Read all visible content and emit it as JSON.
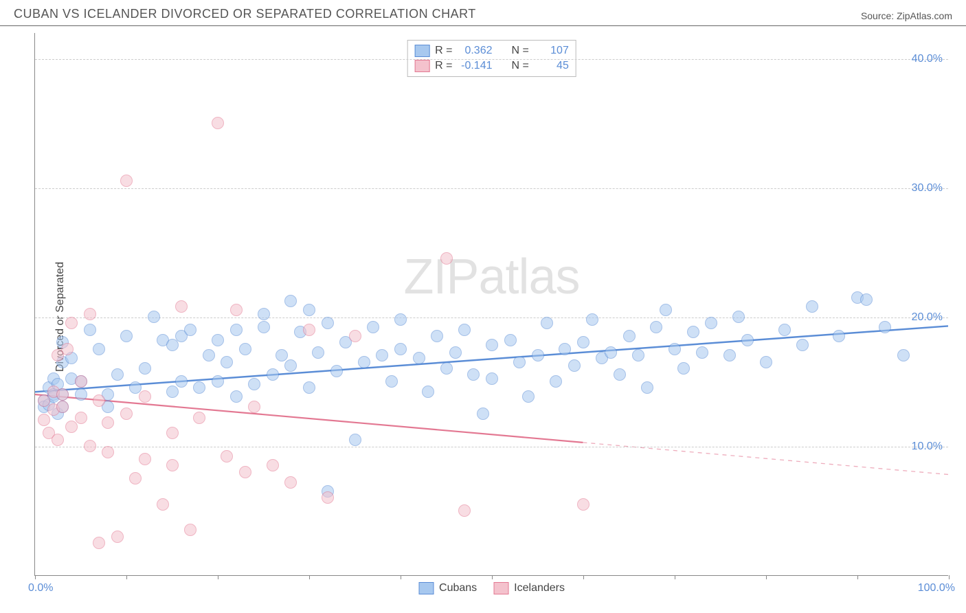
{
  "header": {
    "title": "CUBAN VS ICELANDER DIVORCED OR SEPARATED CORRELATION CHART",
    "source": "Source: ZipAtlas.com"
  },
  "chart": {
    "type": "scatter",
    "ylabel": "Divorced or Separated",
    "watermark_zip": "ZIP",
    "watermark_atlas": "atlas",
    "xlim": [
      0,
      100
    ],
    "ylim": [
      0,
      42
    ],
    "x_min_label": "0.0%",
    "x_max_label": "100.0%",
    "ytick_labels": [
      "10.0%",
      "20.0%",
      "30.0%",
      "40.0%"
    ],
    "ytick_values": [
      10,
      20,
      30,
      40
    ],
    "xtick_values": [
      0,
      10,
      20,
      30,
      40,
      50,
      60,
      70,
      80,
      90,
      100
    ],
    "grid_color": "#cccccc",
    "background_color": "#ffffff",
    "marker_radius": 9,
    "marker_opacity": 0.55,
    "series": [
      {
        "name": "Cubans",
        "color_fill": "#a7c8ef",
        "color_stroke": "#5b8dd6",
        "r_label": "R =",
        "r_value": "0.362",
        "n_label": "N =",
        "n_value": "107",
        "trend": {
          "x1": 0,
          "y1": 14.2,
          "x2": 100,
          "y2": 19.3,
          "solid_until_x": 100,
          "width": 2.5
        },
        "points": [
          [
            1,
            13.5
          ],
          [
            1,
            13
          ],
          [
            1.5,
            14.5
          ],
          [
            1.5,
            13.2
          ],
          [
            2,
            14
          ],
          [
            2,
            13.8
          ],
          [
            2,
            15.2
          ],
          [
            2.5,
            12.5
          ],
          [
            2.5,
            14.8
          ],
          [
            3,
            14
          ],
          [
            3,
            13
          ],
          [
            3,
            16.5
          ],
          [
            3,
            18
          ],
          [
            4,
            15.2
          ],
          [
            4,
            16.8
          ],
          [
            5,
            14
          ],
          [
            5,
            15
          ],
          [
            6,
            19
          ],
          [
            7,
            17.5
          ],
          [
            8,
            14
          ],
          [
            8,
            13
          ],
          [
            9,
            15.5
          ],
          [
            10,
            18.5
          ],
          [
            11,
            14.5
          ],
          [
            12,
            16
          ],
          [
            13,
            20
          ],
          [
            14,
            18.2
          ],
          [
            15,
            14.2
          ],
          [
            15,
            17.8
          ],
          [
            16,
            15
          ],
          [
            16,
            18.5
          ],
          [
            17,
            19
          ],
          [
            18,
            14.5
          ],
          [
            19,
            17
          ],
          [
            20,
            15
          ],
          [
            20,
            18.2
          ],
          [
            21,
            16.5
          ],
          [
            22,
            13.8
          ],
          [
            22,
            19
          ],
          [
            23,
            17.5
          ],
          [
            24,
            14.8
          ],
          [
            25,
            19.2
          ],
          [
            25,
            20.2
          ],
          [
            26,
            15.5
          ],
          [
            27,
            17
          ],
          [
            28,
            21.2
          ],
          [
            28,
            16.2
          ],
          [
            29,
            18.8
          ],
          [
            30,
            14.5
          ],
          [
            30,
            20.5
          ],
          [
            31,
            17.2
          ],
          [
            32,
            19.5
          ],
          [
            32,
            6.5
          ],
          [
            33,
            15.8
          ],
          [
            34,
            18
          ],
          [
            35,
            10.5
          ],
          [
            36,
            16.5
          ],
          [
            37,
            19.2
          ],
          [
            38,
            17
          ],
          [
            39,
            15
          ],
          [
            40,
            17.5
          ],
          [
            40,
            19.8
          ],
          [
            42,
            16.8
          ],
          [
            43,
            14.2
          ],
          [
            44,
            18.5
          ],
          [
            45,
            16
          ],
          [
            46,
            17.2
          ],
          [
            47,
            19
          ],
          [
            48,
            15.5
          ],
          [
            49,
            12.5
          ],
          [
            50,
            17.8
          ],
          [
            50,
            15.2
          ],
          [
            52,
            18.2
          ],
          [
            53,
            16.5
          ],
          [
            54,
            13.8
          ],
          [
            55,
            17
          ],
          [
            56,
            19.5
          ],
          [
            57,
            15
          ],
          [
            58,
            17.5
          ],
          [
            59,
            16.2
          ],
          [
            60,
            18
          ],
          [
            61,
            19.8
          ],
          [
            62,
            16.8
          ],
          [
            63,
            17.2
          ],
          [
            64,
            15.5
          ],
          [
            65,
            18.5
          ],
          [
            66,
            17
          ],
          [
            67,
            14.5
          ],
          [
            68,
            19.2
          ],
          [
            69,
            20.5
          ],
          [
            70,
            17.5
          ],
          [
            71,
            16
          ],
          [
            72,
            18.8
          ],
          [
            73,
            17.2
          ],
          [
            74,
            19.5
          ],
          [
            76,
            17
          ],
          [
            77,
            20
          ],
          [
            78,
            18.2
          ],
          [
            80,
            16.5
          ],
          [
            82,
            19
          ],
          [
            84,
            17.8
          ],
          [
            85,
            20.8
          ],
          [
            88,
            18.5
          ],
          [
            90,
            21.5
          ],
          [
            91,
            21.3
          ],
          [
            93,
            19.2
          ],
          [
            95,
            17
          ]
        ]
      },
      {
        "name": "Icelanders",
        "color_fill": "#f4c2cd",
        "color_stroke": "#e37892",
        "r_label": "R =",
        "r_value": "-0.141",
        "n_label": "N =",
        "n_value": "45",
        "trend": {
          "x1": 0,
          "y1": 14.0,
          "x2": 100,
          "y2": 7.8,
          "solid_until_x": 60,
          "width": 2.2
        },
        "points": [
          [
            1,
            12
          ],
          [
            1,
            13.5
          ],
          [
            1.5,
            11
          ],
          [
            2,
            12.8
          ],
          [
            2,
            14.2
          ],
          [
            2.5,
            10.5
          ],
          [
            2.5,
            17
          ],
          [
            3,
            13
          ],
          [
            3,
            14
          ],
          [
            3.5,
            17.5
          ],
          [
            4,
            11.5
          ],
          [
            4,
            19.5
          ],
          [
            5,
            12.2
          ],
          [
            5,
            15
          ],
          [
            6,
            10
          ],
          [
            6,
            20.2
          ],
          [
            7,
            13.5
          ],
          [
            7,
            2.5
          ],
          [
            8,
            11.8
          ],
          [
            8,
            9.5
          ],
          [
            9,
            3
          ],
          [
            10,
            12.5
          ],
          [
            10,
            30.5
          ],
          [
            11,
            7.5
          ],
          [
            12,
            13.8
          ],
          [
            12,
            9
          ],
          [
            14,
            5.5
          ],
          [
            15,
            11
          ],
          [
            15,
            8.5
          ],
          [
            16,
            20.8
          ],
          [
            17,
            3.5
          ],
          [
            18,
            12.2
          ],
          [
            20,
            35
          ],
          [
            21,
            9.2
          ],
          [
            22,
            20.5
          ],
          [
            23,
            8
          ],
          [
            24,
            13
          ],
          [
            26,
            8.5
          ],
          [
            28,
            7.2
          ],
          [
            30,
            19
          ],
          [
            32,
            6
          ],
          [
            35,
            18.5
          ],
          [
            45,
            24.5
          ],
          [
            47,
            5
          ],
          [
            60,
            5.5
          ]
        ]
      }
    ],
    "legend_bottom": [
      {
        "label": "Cubans",
        "fill": "#a7c8ef",
        "stroke": "#5b8dd6"
      },
      {
        "label": "Icelanders",
        "fill": "#f4c2cd",
        "stroke": "#e37892"
      }
    ]
  }
}
